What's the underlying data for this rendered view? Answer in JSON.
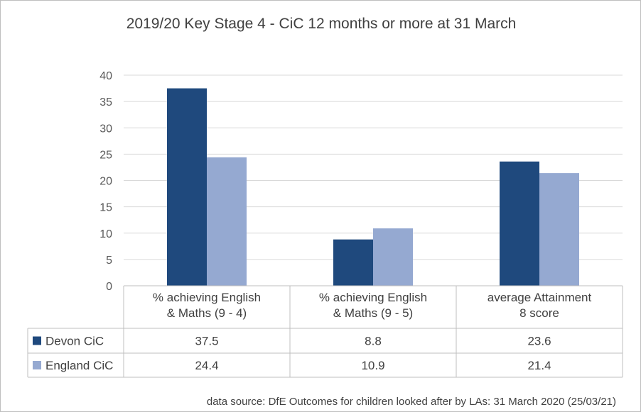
{
  "chart_data": {
    "type": "bar",
    "title": "2019/20 Key Stage 4 - CiC 12 months or more at 31 March",
    "categories": [
      [
        "% achieving English",
        "& Maths  (9 - 4)"
      ],
      [
        "% achieving English",
        "& Maths  (9 - 5)"
      ],
      [
        "average Attainment",
        "8 score"
      ]
    ],
    "series": [
      {
        "name": "Devon CiC",
        "values": [
          37.5,
          8.8,
          23.6
        ],
        "labels": [
          "37.5",
          "8.8",
          "23.6"
        ],
        "color": "#1f497d"
      },
      {
        "name": "England CiC",
        "values": [
          24.4,
          10.9,
          21.4
        ],
        "labels": [
          "24.4",
          "10.9",
          "21.4"
        ],
        "color": "#95a9d1"
      }
    ],
    "ylim": [
      0,
      40
    ],
    "yticks": [
      0,
      5,
      10,
      15,
      20,
      25,
      30,
      35,
      40
    ],
    "grid": true,
    "legend": "data-table",
    "source": "data source: DfE Outcomes for children looked after by LAs: 31 March 2020 (25/03/21)"
  }
}
